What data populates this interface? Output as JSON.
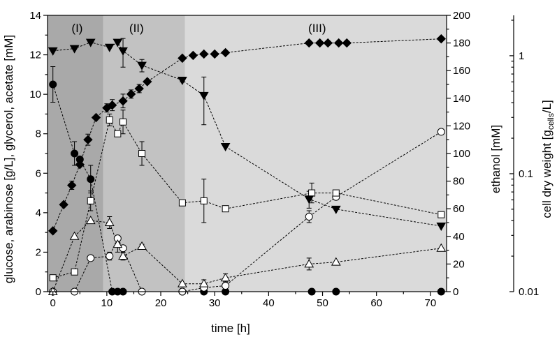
{
  "chart_data": {
    "type": "scatter",
    "xlabel": "time [h]",
    "ylabel_left": "glucose, arabinose [g/L], glycerol, acetate [mM]",
    "ylabel_right1": "ethanol [mM]",
    "ylabel_right2_main": "cell dry weight [g",
    "ylabel_right2_sub": "cells",
    "ylabel_right2_end": "/L]",
    "xlim": [
      -1,
      73
    ],
    "ylim_left": [
      0,
      14
    ],
    "ylim_right1": [
      0,
      200
    ],
    "ylim_right2_log": [
      0.01,
      2.2
    ],
    "x_ticks": [
      0,
      10,
      20,
      30,
      40,
      50,
      60,
      70
    ],
    "y_left_ticks": [
      0,
      2,
      4,
      6,
      8,
      10,
      12,
      14
    ],
    "y_right1_ticks": [
      0,
      20,
      40,
      60,
      80,
      100,
      120,
      140,
      160,
      180,
      200
    ],
    "y_right2_ticks": [
      {
        "value": 0.01,
        "label": "0.01"
      },
      {
        "value": 0.1,
        "label": "0.1"
      },
      {
        "value": 1,
        "label": "1"
      }
    ],
    "phases": [
      {
        "label": "(I)",
        "x_start": -1,
        "x_end": 9.3,
        "label_x": 4.5,
        "color": "#a9a9a9"
      },
      {
        "label": "(II)",
        "x_start": 9.3,
        "x_end": 24.5,
        "label_x": 15.5,
        "color": "#c2c2c2"
      },
      {
        "label": "(III)",
        "x_start": 24.5,
        "x_end": 73,
        "label_x": 49,
        "color": "#dadada"
      }
    ],
    "series": [
      {
        "name": "glucose",
        "marker": "circle-filled",
        "axis": "left",
        "x": [
          0,
          4,
          5,
          7,
          11,
          12,
          13,
          24,
          28,
          32,
          48,
          52.5,
          72
        ],
        "y": [
          10.5,
          7.0,
          6.7,
          5.7,
          0.0,
          0.0,
          0.0,
          0.0,
          0.0,
          0.0,
          0.0,
          0.0,
          0.0
        ],
        "err": [
          0.9,
          0.6,
          0,
          0.7,
          0,
          0,
          0,
          0,
          0,
          0,
          0,
          0,
          0
        ]
      },
      {
        "name": "arabinose",
        "marker": "circle-open",
        "axis": "left",
        "x": [
          0,
          4,
          7,
          10.5,
          12,
          13,
          16.5,
          24,
          28,
          32,
          47.5,
          52.5,
          72
        ],
        "y": [
          0.0,
          0.0,
          1.7,
          1.8,
          2.7,
          2.2,
          0.0,
          0.0,
          0.2,
          0.3,
          3.8,
          4.8,
          8.1
        ],
        "err": [
          0,
          0,
          0,
          0.2,
          0,
          0,
          0,
          0,
          0,
          0,
          0.3,
          0,
          0
        ]
      },
      {
        "name": "glycerol",
        "marker": "square-open",
        "axis": "left",
        "x": [
          0,
          4,
          7,
          10.5,
          12,
          13,
          16.5,
          24,
          28,
          32,
          48,
          52.5,
          72
        ],
        "y": [
          0.7,
          1.0,
          4.6,
          8.7,
          8.0,
          8.6,
          7.0,
          4.5,
          4.6,
          4.2,
          5.0,
          5.0,
          3.9
        ],
        "err": [
          0,
          0,
          0.5,
          0.3,
          0,
          0.6,
          0.6,
          0,
          1.1,
          0.15,
          0.5,
          0,
          0
        ]
      },
      {
        "name": "acetate",
        "marker": "triangle-up-open",
        "axis": "left",
        "x": [
          0,
          4,
          7,
          10.5,
          12,
          13,
          16.5,
          24,
          28,
          32,
          47.5,
          52.5,
          72
        ],
        "y": [
          0.0,
          2.8,
          3.6,
          3.5,
          2.4,
          1.8,
          2.3,
          0.4,
          0.4,
          0.7,
          1.4,
          1.5,
          2.2
        ],
        "err": [
          0,
          0,
          0,
          0.3,
          0.4,
          0.2,
          0.1,
          0,
          0.2,
          0.2,
          0.3,
          0,
          0
        ]
      },
      {
        "name": "ethanol",
        "marker": "diamond-filled",
        "axis": "right1",
        "x": [
          0,
          2,
          3.5,
          5,
          6.5,
          8,
          10,
          11,
          13,
          14.5,
          16,
          17.5,
          24,
          26,
          28,
          30,
          32,
          47.5,
          49.5,
          51,
          53,
          54.5,
          72
        ],
        "y": [
          44,
          63,
          77,
          92,
          110,
          126,
          133,
          135,
          138,
          143,
          147,
          152,
          169,
          171,
          172,
          172,
          173,
          180,
          180,
          180,
          180,
          180,
          183
        ],
        "err": [
          0,
          0,
          3,
          0,
          4,
          0,
          3,
          4,
          5,
          3,
          3,
          0,
          0,
          0,
          0,
          0,
          0,
          0,
          0,
          0,
          0,
          0,
          0
        ]
      },
      {
        "name": "cell dry weight",
        "marker": "triangle-down-filled",
        "axis": "right2",
        "x": [
          0,
          4,
          7,
          10.5,
          12,
          13,
          16.5,
          24,
          28,
          32,
          47.5,
          52.5,
          72
        ],
        "y": [
          1.1,
          1.15,
          1.3,
          1.18,
          1.3,
          1.1,
          0.83,
          0.62,
          0.46,
          0.17,
          0.061,
          0.05,
          0.036
        ],
        "err": [
          0,
          0,
          0,
          0,
          0,
          0.3,
          0.1,
          0.02,
          0.2,
          0,
          0.01,
          0,
          0
        ]
      }
    ]
  }
}
